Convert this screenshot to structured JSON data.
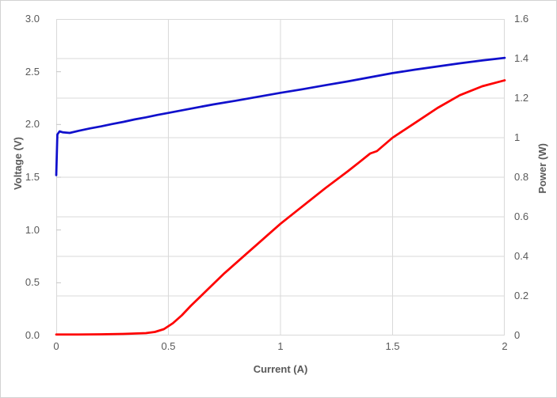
{
  "chart_data": {
    "type": "line",
    "title": "",
    "xlabel": "Current (A)",
    "ylabel_left": "Voltage (V)",
    "ylabel_right": "Power (W)",
    "x_range": [
      0,
      2
    ],
    "y_left_range": [
      0,
      3.0
    ],
    "y_right_range": [
      0,
      1.6
    ],
    "grid": "on",
    "legend": "none",
    "colors": {
      "voltage_line": "#1010cc",
      "power_line": "#fe0000",
      "gridline": "#d9d9d9",
      "tick_mark": "#c6c6c6",
      "text": "#595959"
    },
    "x_ticks": [
      {
        "v": 0,
        "t": "0"
      },
      {
        "v": 0.5,
        "t": "0.5"
      },
      {
        "v": 1,
        "t": "1"
      },
      {
        "v": 1.5,
        "t": "1.5"
      },
      {
        "v": 2,
        "t": "2"
      }
    ],
    "left_ticks": [
      {
        "v": 3.0,
        "t": "3.0"
      },
      {
        "v": 2.5,
        "t": "2.5"
      },
      {
        "v": 2.0,
        "t": "2.0"
      },
      {
        "v": 1.5,
        "t": "1.5"
      },
      {
        "v": 1.0,
        "t": "1.0"
      },
      {
        "v": 0.5,
        "t": "0.5"
      },
      {
        "v": 0.0,
        "t": "0.0"
      }
    ],
    "right_ticks": [
      {
        "v": 1.6,
        "t": "1.6"
      },
      {
        "v": 1.4,
        "t": "1.4"
      },
      {
        "v": 1.2,
        "t": "1.2"
      },
      {
        "v": 1.0,
        "t": "1"
      },
      {
        "v": 0.8,
        "t": "0.8"
      },
      {
        "v": 0.6,
        "t": "0.6"
      },
      {
        "v": 0.4,
        "t": "0.4"
      },
      {
        "v": 0.2,
        "t": "0.2"
      },
      {
        "v": 0.0,
        "t": "0"
      }
    ],
    "series": [
      {
        "name": "Voltage",
        "axis": "left",
        "color": "#1010cc",
        "points": [
          [
            0.0,
            1.52
          ],
          [
            0.005,
            1.905
          ],
          [
            0.015,
            1.935
          ],
          [
            0.03,
            1.925
          ],
          [
            0.06,
            1.92
          ],
          [
            0.1,
            1.94
          ],
          [
            0.15,
            1.963
          ],
          [
            0.2,
            1.982
          ],
          [
            0.25,
            2.005
          ],
          [
            0.3,
            2.025
          ],
          [
            0.35,
            2.048
          ],
          [
            0.4,
            2.068
          ],
          [
            0.45,
            2.09
          ],
          [
            0.5,
            2.11
          ],
          [
            0.6,
            2.15
          ],
          [
            0.7,
            2.19
          ],
          [
            0.8,
            2.225
          ],
          [
            0.9,
            2.263
          ],
          [
            1.0,
            2.3
          ],
          [
            1.1,
            2.335
          ],
          [
            1.2,
            2.372
          ],
          [
            1.3,
            2.408
          ],
          [
            1.4,
            2.448
          ],
          [
            1.5,
            2.487
          ],
          [
            1.6,
            2.52
          ],
          [
            1.7,
            2.55
          ],
          [
            1.8,
            2.58
          ],
          [
            1.9,
            2.607
          ],
          [
            2.0,
            2.632
          ]
        ]
      },
      {
        "name": "Power",
        "axis": "right",
        "color": "#fe0000",
        "points": [
          [
            0.0,
            0.005
          ],
          [
            0.1,
            0.005
          ],
          [
            0.2,
            0.006
          ],
          [
            0.3,
            0.008
          ],
          [
            0.4,
            0.012
          ],
          [
            0.44,
            0.018
          ],
          [
            0.48,
            0.032
          ],
          [
            0.52,
            0.062
          ],
          [
            0.56,
            0.102
          ],
          [
            0.6,
            0.15
          ],
          [
            0.65,
            0.205
          ],
          [
            0.7,
            0.26
          ],
          [
            0.75,
            0.315
          ],
          [
            0.8,
            0.365
          ],
          [
            0.85,
            0.415
          ],
          [
            0.9,
            0.465
          ],
          [
            0.95,
            0.515
          ],
          [
            1.0,
            0.565
          ],
          [
            1.1,
            0.655
          ],
          [
            1.2,
            0.745
          ],
          [
            1.3,
            0.83
          ],
          [
            1.35,
            0.875
          ],
          [
            1.4,
            0.92
          ],
          [
            1.43,
            0.932
          ],
          [
            1.5,
            1.0
          ],
          [
            1.6,
            1.075
          ],
          [
            1.7,
            1.15
          ],
          [
            1.8,
            1.215
          ],
          [
            1.9,
            1.26
          ],
          [
            2.0,
            1.29
          ]
        ]
      }
    ]
  }
}
